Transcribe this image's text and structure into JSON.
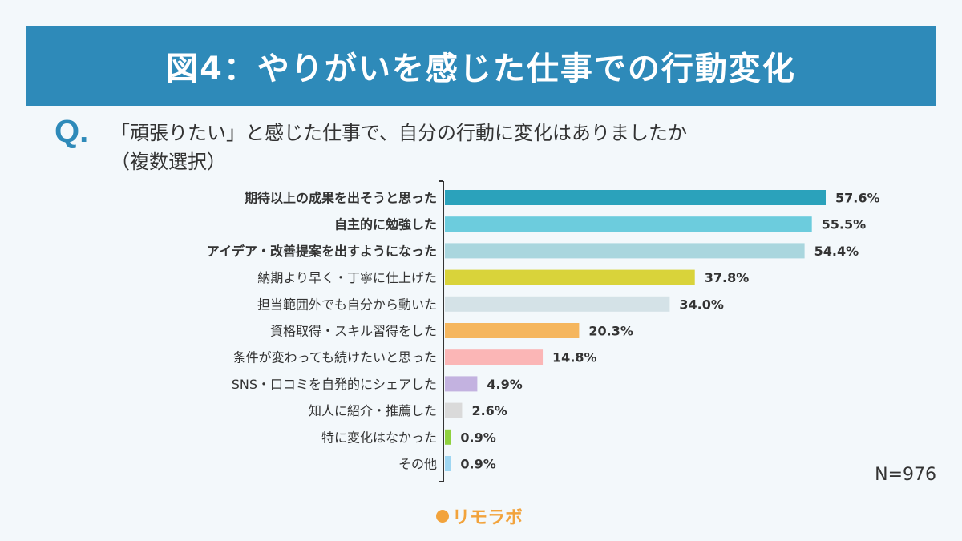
{
  "header": {
    "title": "図4：やりがいを感じた仕事での行動変化"
  },
  "question": {
    "mark": "Q.",
    "line1": "「頑張りたい」と感じた仕事で、自分の行動に変化はありましたか",
    "line2": "（複数選択）"
  },
  "chart_data": {
    "type": "bar",
    "orientation": "horizontal",
    "categories": [
      "期待以上の成果を出そうと思った",
      "自主的に勉強した",
      "アイデア・改善提案を出すようになった",
      "納期より早く・丁寧に仕上げた",
      "担当範囲外でも自分から動いた",
      "資格取得・スキル習得をした",
      "条件が変わっても続けたいと思った",
      "SNS・口コミを自発的にシェアした",
      "知人に紹介・推薦した",
      "特に変化はなかった",
      "その他"
    ],
    "values": [
      57.6,
      55.5,
      54.4,
      37.8,
      34.0,
      20.3,
      14.8,
      4.9,
      2.6,
      0.9,
      0.9
    ],
    "value_labels": [
      "57.6%",
      "55.5%",
      "54.4%",
      "37.8%",
      "34.0%",
      "20.3%",
      "14.8%",
      "4.9%",
      "2.6%",
      "0.9%",
      "0.9%"
    ],
    "bold_categories": [
      0,
      1,
      2
    ],
    "colors": [
      "#2ba2bb",
      "#6cccdd",
      "#a9d6de",
      "#d9d33a",
      "#d4e2e7",
      "#f5b65e",
      "#fbb6b6",
      "#c3b2e0",
      "#dadada",
      "#8fd13e",
      "#9ed6f2"
    ],
    "xlim": [
      0,
      100
    ],
    "grid": false,
    "legend": "none"
  },
  "footer": {
    "n_label": "N=976",
    "logo_text": "リモラボ",
    "logo_color": "#f2a33c"
  },
  "colors": {
    "banner": "#2e8ab9",
    "background": "#f3f8fb",
    "axis": "#333333"
  }
}
